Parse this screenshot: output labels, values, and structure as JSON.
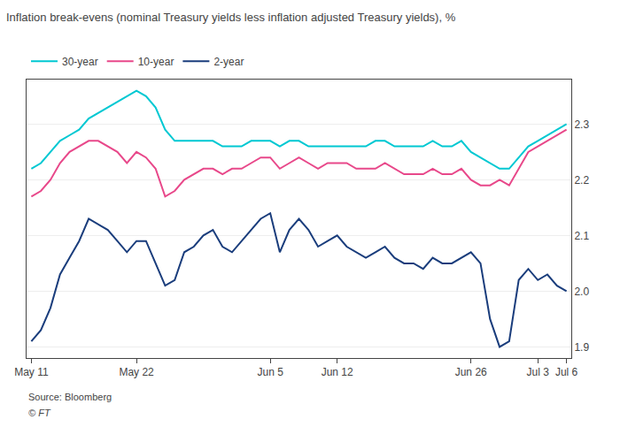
{
  "chart_data": {
    "type": "line",
    "title": "Inflation break-evens (nominal Treasury yields less inflation adjusted Treasury yields), %",
    "annotations": [
      "Source: Bloomberg",
      "© FT"
    ],
    "categories": [
      "May 11",
      null,
      null,
      null,
      null,
      null,
      null,
      null,
      null,
      null,
      null,
      "May 22",
      null,
      null,
      null,
      null,
      null,
      null,
      null,
      null,
      null,
      null,
      null,
      null,
      null,
      "Jun 5",
      null,
      null,
      null,
      null,
      null,
      null,
      "Jun 12",
      null,
      null,
      null,
      null,
      null,
      null,
      null,
      null,
      null,
      null,
      null,
      null,
      null,
      "Jun 26",
      null,
      null,
      null,
      null,
      null,
      null,
      "Jul 3",
      null,
      null,
      "Jul 6"
    ],
    "series": [
      {
        "name": "30-year",
        "color": "#00c8d2",
        "values": [
          2.22,
          2.23,
          2.25,
          2.27,
          2.28,
          2.29,
          2.31,
          2.32,
          2.33,
          2.34,
          2.35,
          2.36,
          2.35,
          2.33,
          2.29,
          2.27,
          2.27,
          2.27,
          2.27,
          2.27,
          2.26,
          2.26,
          2.26,
          2.27,
          2.27,
          2.27,
          2.26,
          2.27,
          2.27,
          2.26,
          2.26,
          2.26,
          2.26,
          2.26,
          2.26,
          2.26,
          2.27,
          2.27,
          2.26,
          2.26,
          2.26,
          2.26,
          2.27,
          2.26,
          2.26,
          2.27,
          2.25,
          2.24,
          2.23,
          2.22,
          2.22,
          2.24,
          2.26,
          2.27,
          2.28,
          2.29,
          2.3
        ]
      },
      {
        "name": "10-year",
        "color": "#e8488a",
        "values": [
          2.17,
          2.18,
          2.2,
          2.23,
          2.25,
          2.26,
          2.27,
          2.27,
          2.26,
          2.25,
          2.23,
          2.25,
          2.24,
          2.22,
          2.17,
          2.18,
          2.2,
          2.21,
          2.22,
          2.22,
          2.21,
          2.22,
          2.22,
          2.23,
          2.24,
          2.24,
          2.22,
          2.23,
          2.24,
          2.23,
          2.22,
          2.23,
          2.23,
          2.23,
          2.22,
          2.22,
          2.22,
          2.23,
          2.22,
          2.21,
          2.21,
          2.21,
          2.22,
          2.21,
          2.21,
          2.22,
          2.2,
          2.19,
          2.19,
          2.2,
          2.19,
          2.22,
          2.25,
          2.26,
          2.27,
          2.28,
          2.29
        ]
      },
      {
        "name": "2-year",
        "color": "#1a3d7c",
        "values": [
          1.91,
          1.93,
          1.97,
          2.03,
          2.06,
          2.09,
          2.13,
          2.12,
          2.11,
          2.09,
          2.07,
          2.09,
          2.09,
          2.05,
          2.01,
          2.02,
          2.07,
          2.08,
          2.1,
          2.11,
          2.08,
          2.07,
          2.09,
          2.11,
          2.13,
          2.14,
          2.07,
          2.11,
          2.13,
          2.11,
          2.08,
          2.09,
          2.1,
          2.08,
          2.07,
          2.06,
          2.07,
          2.08,
          2.06,
          2.05,
          2.05,
          2.04,
          2.06,
          2.05,
          2.05,
          2.06,
          2.07,
          2.05,
          1.95,
          1.9,
          1.91,
          2.02,
          2.04,
          2.02,
          2.03,
          2.01,
          2.0
        ]
      }
    ],
    "ylim": [
      1.88,
      2.38
    ],
    "yticks": [
      1.9,
      {
        "value": 2.0,
        "label": "2.0"
      },
      2.1,
      2.2,
      2.3
    ],
    "grid": true,
    "legend": "upper left"
  }
}
